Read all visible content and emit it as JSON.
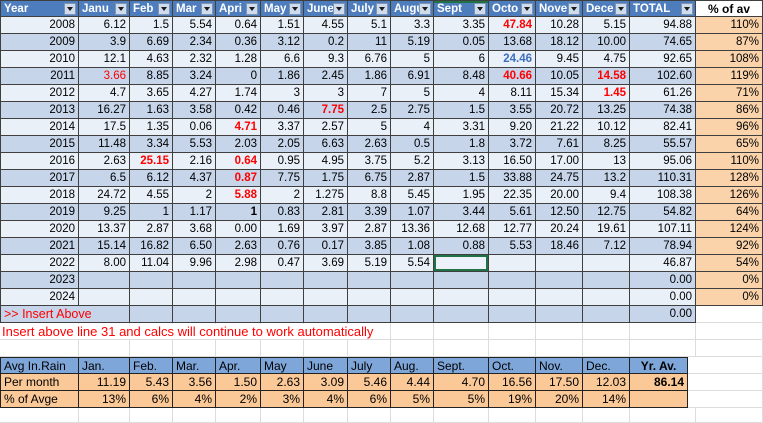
{
  "main_table": {
    "header": {
      "year": "Year",
      "months": [
        "Janu",
        "Feb",
        "Mar",
        "Apri",
        "May",
        "June",
        "July",
        "Augu",
        "Sept",
        "Octo",
        "Nove",
        "Dece"
      ],
      "total": "TOTAL",
      "pct": "% of av"
    },
    "rows": [
      {
        "year": "2008",
        "cells": [
          "6.12",
          "1.5",
          "5.54",
          "0.64",
          "1.51",
          "4.55",
          "5.1",
          "3.3",
          "3.35",
          "47.84",
          "10.28",
          "5.15"
        ],
        "total": "94.88",
        "pct": "110%",
        "marks": {
          "9": "red"
        }
      },
      {
        "year": "2009",
        "cells": [
          "3.9",
          "6.69",
          "2.34",
          "0.36",
          "3.12",
          "0.2",
          "11",
          "5.19",
          "0.05",
          "13.68",
          "18.12",
          "10.00"
        ],
        "total": "74.65",
        "pct": "87%",
        "marks": {}
      },
      {
        "year": "2010",
        "cells": [
          "12.1",
          "4.63",
          "2.32",
          "1.28",
          "6.6",
          "9.3",
          "6.76",
          "5",
          "6",
          "24.46",
          "9.45",
          "4.75"
        ],
        "total": "92.65",
        "pct": "108%",
        "marks": {
          "9": "blue"
        }
      },
      {
        "year": "2011",
        "cells": [
          "3.66",
          "8.85",
          "3.24",
          "0",
          "1.86",
          "2.45",
          "1.86",
          "6.91",
          "8.48",
          "40.66",
          "10.05",
          "14.58"
        ],
        "total": "102.60",
        "pct": "119%",
        "marks": {
          "0": "redr",
          "9": "red",
          "11": "red"
        }
      },
      {
        "year": "2012",
        "cells": [
          "4.7",
          "3.65",
          "4.27",
          "1.74",
          "3",
          "3",
          "7",
          "5",
          "4",
          "8.11",
          "15.34",
          "1.45"
        ],
        "total": "61.26",
        "pct": "71%",
        "marks": {
          "11": "red"
        }
      },
      {
        "year": "2013",
        "cells": [
          "16.27",
          "1.63",
          "3.58",
          "0.42",
          "0.46",
          "7.75",
          "2.5",
          "2.75",
          "1.5",
          "3.55",
          "20.72",
          "13.25"
        ],
        "total": "74.38",
        "pct": "86%",
        "marks": {
          "5": "red"
        }
      },
      {
        "year": "2014",
        "cells": [
          "17.5",
          "1.35",
          "0.06",
          "4.71",
          "3.37",
          "2.57",
          "5",
          "4",
          "3.31",
          "9.20",
          "21.22",
          "10.12"
        ],
        "total": "82.41",
        "pct": "96%",
        "marks": {
          "3": "red"
        }
      },
      {
        "year": "2015",
        "cells": [
          "11.48",
          "3.34",
          "5.53",
          "2.03",
          "2.05",
          "6.63",
          "2.63",
          "0.5",
          "1.8",
          "3.72",
          "7.61",
          "8.25"
        ],
        "total": "55.57",
        "pct": "65%",
        "marks": {}
      },
      {
        "year": "2016",
        "cells": [
          "2.63",
          "25.15",
          "2.16",
          "0.64",
          "0.95",
          "4.95",
          "3.75",
          "5.2",
          "3.13",
          "16.50",
          "17.00",
          "13"
        ],
        "total": "95.06",
        "pct": "110%",
        "marks": {
          "1": "red",
          "3": "red"
        }
      },
      {
        "year": "2017",
        "cells": [
          "6.5",
          "6.12",
          "4.37",
          "0.87",
          "7.75",
          "1.75",
          "6.75",
          "2.87",
          "1.5",
          "33.88",
          "24.75",
          "13.2"
        ],
        "total": "110.31",
        "pct": "128%",
        "marks": {
          "3": "red"
        }
      },
      {
        "year": "2018",
        "cells": [
          "24.72",
          "4.55",
          "2",
          "5.88",
          "2",
          "1.275",
          "8.8",
          "5.45",
          "1.95",
          "22.35",
          "20.00",
          "9.4"
        ],
        "total": "108.38",
        "pct": "126%",
        "marks": {
          "3": "red"
        }
      },
      {
        "year": "2019",
        "cells": [
          "9.25",
          "1",
          "1.17",
          "1",
          "0.83",
          "2.81",
          "3.39",
          "1.07",
          "3.44",
          "5.61",
          "12.50",
          "12.75"
        ],
        "total": "54.82",
        "pct": "64%",
        "marks": {
          "3": "boldv"
        }
      },
      {
        "year": "2020",
        "cells": [
          "13.37",
          "2.87",
          "3.68",
          "0.00",
          "1.69",
          "3.97",
          "2.87",
          "13.36",
          "12.68",
          "12.77",
          "20.24",
          "19.61"
        ],
        "total": "107.11",
        "pct": "124%",
        "marks": {}
      },
      {
        "year": "2021",
        "cells": [
          "15.14",
          "16.82",
          "6.50",
          "2.63",
          "0.76",
          "0.17",
          "3.85",
          "1.08",
          "0.88",
          "5.53",
          "18.46",
          "7.12"
        ],
        "total": "78.94",
        "pct": "92%",
        "marks": {}
      },
      {
        "year": "2022",
        "cells": [
          "8.00",
          "11.04",
          "9.96",
          "2.98",
          "0.47",
          "3.69",
          "5.19",
          "5.54",
          "",
          "",
          "",
          ""
        ],
        "total": "46.87",
        "pct": "54%",
        "marks": {
          "8": "sel"
        }
      },
      {
        "year": "2023",
        "cells": [
          "",
          "",
          "",
          "",
          "",
          "",
          "",
          "",
          "",
          "",
          "",
          ""
        ],
        "total": "0.00",
        "pct": "0%",
        "marks": {}
      },
      {
        "year": "2024",
        "cells": [
          "",
          "",
          "",
          "",
          "",
          "",
          "",
          "",
          "",
          "",
          "",
          ""
        ],
        "total": "0.00",
        "pct": "0%",
        "marks": {}
      },
      {
        "year": ">> Insert Above",
        "cells": [
          "",
          "",
          "",
          "",
          "",
          "",
          "",
          "",
          "",
          "",
          "",
          ""
        ],
        "total": "0.00",
        "pct": "",
        "marks": {},
        "insert": true
      }
    ]
  },
  "notes": {
    "instruction": "Insert above line 31 and calcs will continue to work automatically"
  },
  "summary_table": {
    "corner": "Avg In.Rain",
    "months": [
      "Jan.",
      "Feb.",
      "Mar.",
      "Apr.",
      "May",
      "June",
      "July",
      "Aug.",
      "Sept.",
      "Oct.",
      "Nov.",
      "Dec."
    ],
    "year_avg_label": "Yr. Av.",
    "rows": [
      {
        "label": "Per month",
        "values": [
          "11.19",
          "5.43",
          "3.56",
          "1.50",
          "2.63",
          "3.09",
          "5.46",
          "4.44",
          "4.70",
          "16.56",
          "17.50",
          "12.03"
        ],
        "year_avg": "86.14"
      },
      {
        "label": "% of Avge",
        "values": [
          "13%",
          "6%",
          "4%",
          "2%",
          "3%",
          "4%",
          "6%",
          "5%",
          "5%",
          "19%",
          "20%",
          "14%"
        ],
        "year_avg": ""
      }
    ]
  },
  "colors": {
    "header_blue": "#4E7DBE",
    "band_light": "#EAF0F8",
    "band_dark": "#C6D5EA",
    "pct_peach": "#FBD3AB",
    "summary_header_blue": "#7EA6D9",
    "summary_peach": "#FBC998",
    "alert_red": "#FF0000",
    "value_blue": "#3E6FBF",
    "selection_green": "#1F7245"
  }
}
